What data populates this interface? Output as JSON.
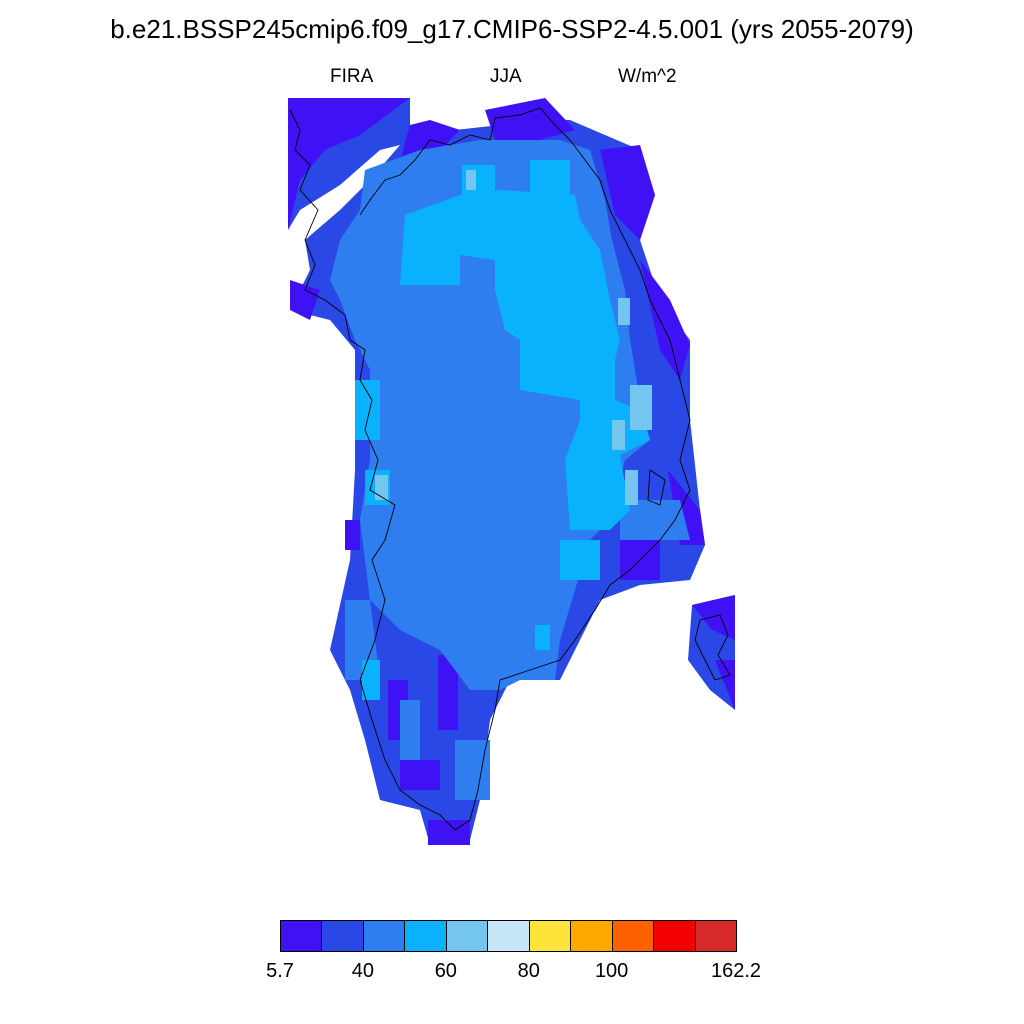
{
  "title": "b.e21.BSSP245cmip6.f09_g17.CMIP6-SSP2-4.5.001 (yrs 2055-2079)",
  "variable": "FIRA",
  "season": "JJA",
  "units": "W/m^2",
  "colorbar": {
    "colors": [
      "#3f12f6",
      "#2a48e6",
      "#2e7ef0",
      "#0ab1fd",
      "#74c6ef",
      "#c6e6f8",
      "#fde43a",
      "#fea800",
      "#fd6100",
      "#f20000",
      "#d62a2a"
    ],
    "labels": [
      "5.7",
      "40",
      "60",
      "80",
      "100",
      "162.2"
    ]
  },
  "map": {
    "region": "Greenland",
    "field_colors": {
      "dark": "#3f12f6",
      "blue": "#2a48e6",
      "mid": "#2e7ef0",
      "light": "#0ab1fd",
      "pale": "#74c6ef",
      "palest": "#c6e6f8"
    }
  }
}
